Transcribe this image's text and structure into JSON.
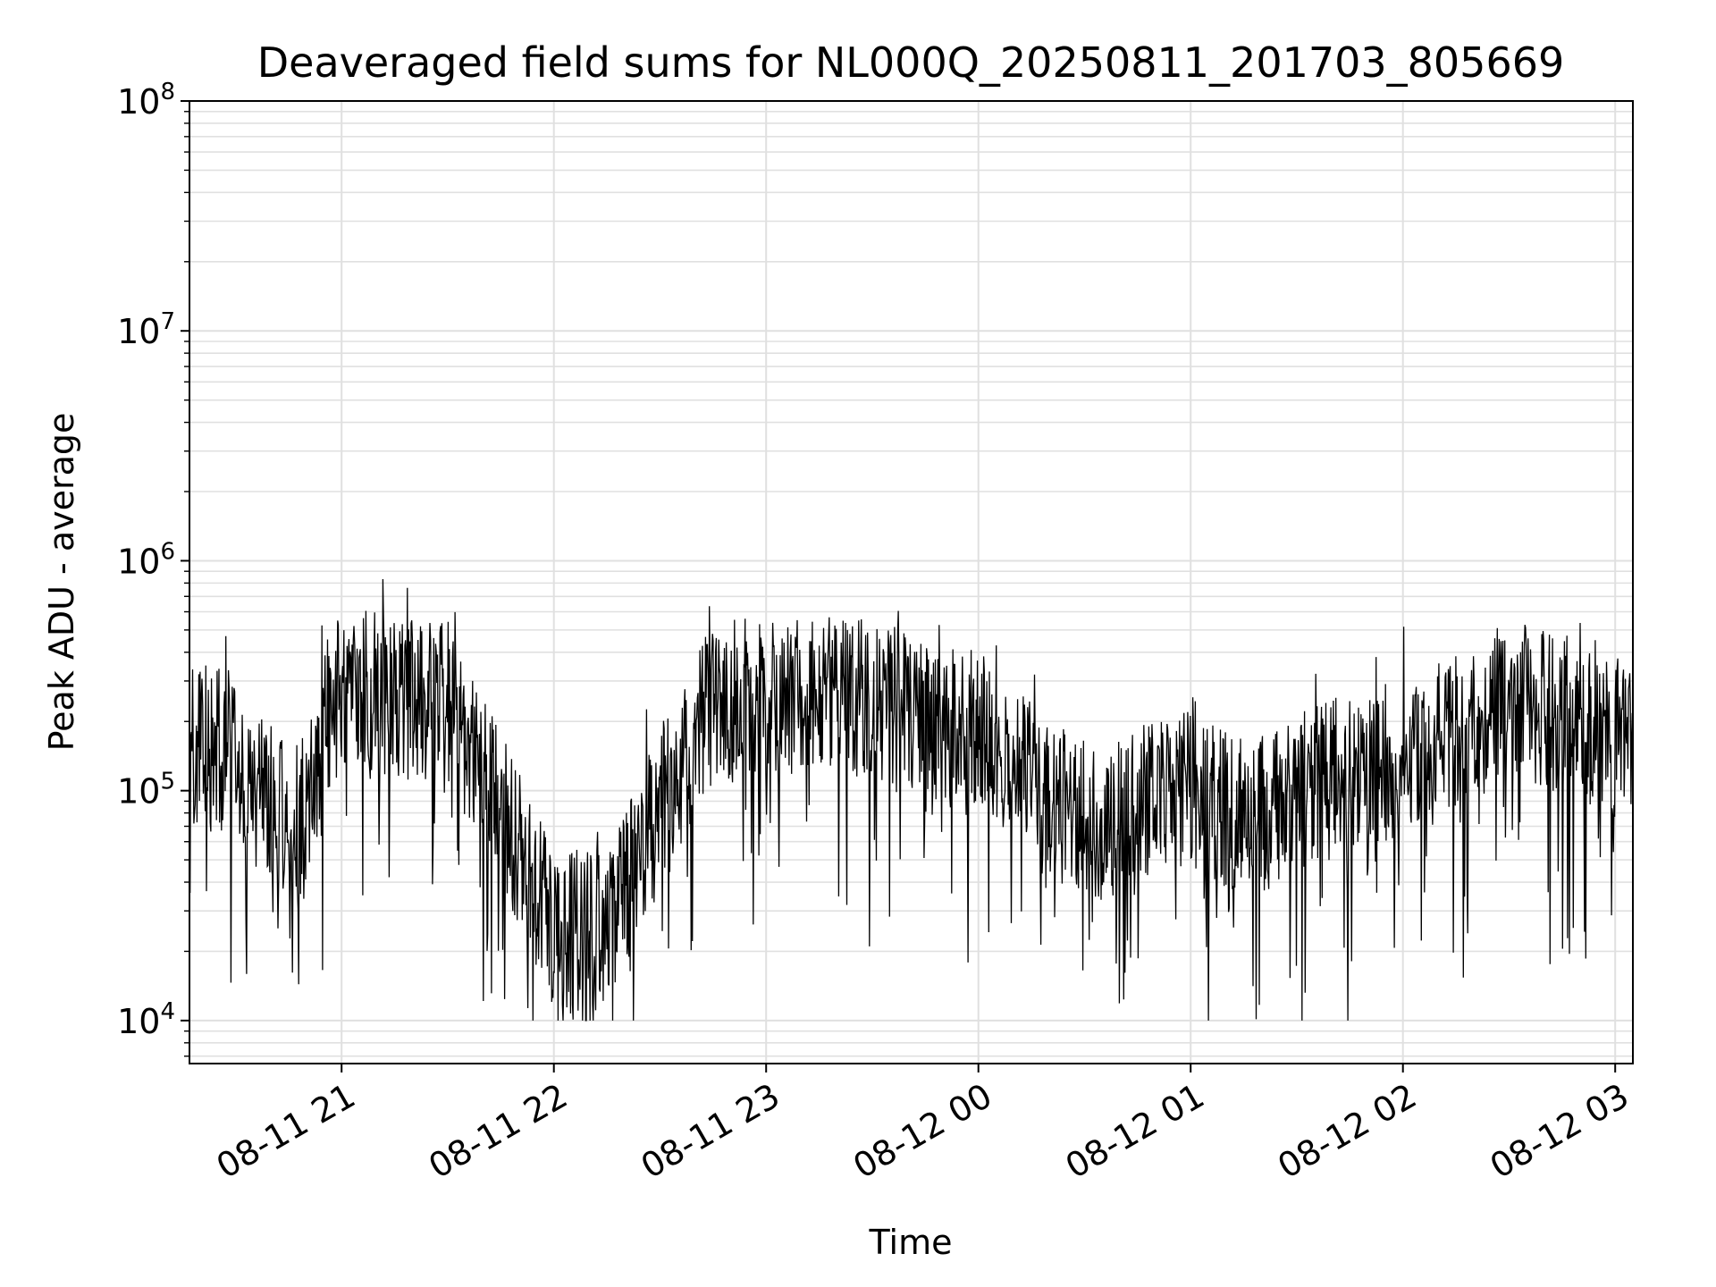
{
  "chart_data": {
    "type": "line",
    "title": "Deaveraged field sums for NL000Q_20250811_201703_805669",
    "xlabel": "Time",
    "ylabel": "Peak ADU - average",
    "yscale": "log",
    "ylim": [
      6500,
      100000000
    ],
    "xlim": [
      "2025-08-11 20:17",
      "2025-08-12 03:05"
    ],
    "grid": true,
    "line_color": "#000000",
    "grid_color": "#e0e0e0",
    "x_ticks": [
      "08-11 21",
      "08-11 22",
      "08-11 23",
      "08-12 00",
      "08-12 01",
      "08-12 02",
      "08-12 03"
    ],
    "y_ticks": [
      {
        "base": "10",
        "exp": "4"
      },
      {
        "base": "10",
        "exp": "5"
      },
      {
        "base": "10",
        "exp": "6"
      },
      {
        "base": "10",
        "exp": "7"
      },
      {
        "base": "10",
        "exp": "8"
      }
    ],
    "series": [
      {
        "x": [
          "2025-08-11 20:17",
          "2025-08-11 20:30",
          "2025-08-11 20:42",
          "2025-08-11 20:50",
          "2025-08-11 20:57",
          "2025-08-11 21:05",
          "2025-08-11 21:15",
          "2025-08-11 21:30",
          "2025-08-11 21:40",
          "2025-08-11 21:50",
          "2025-08-11 22:00",
          "2025-08-11 22:15",
          "2025-08-11 22:30",
          "2025-08-11 22:45",
          "2025-08-11 23:00",
          "2025-08-11 23:30",
          "2025-08-12 00:00",
          "2025-08-12 00:20",
          "2025-08-12 00:35",
          "2025-08-12 00:55",
          "2025-08-12 01:10",
          "2025-08-12 01:25",
          "2025-08-12 01:40",
          "2025-08-12 02:00",
          "2025-08-12 02:25",
          "2025-08-12 02:40",
          "2025-08-12 03:05"
        ],
        "values": [
          200000,
          180000,
          100000,
          90000,
          300000,
          350000,
          300000,
          300000,
          150000,
          70000,
          30000,
          30000,
          100000,
          300000,
          320000,
          300000,
          220000,
          110000,
          80000,
          130000,
          100000,
          100000,
          150000,
          150000,
          300000,
          280000,
          200000
        ]
      }
    ]
  }
}
